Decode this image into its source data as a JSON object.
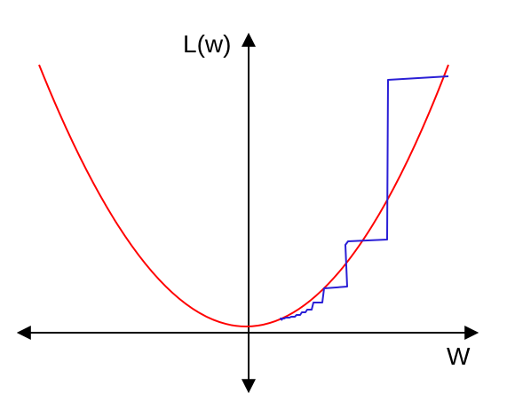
{
  "diagram": {
    "y_axis_label": "L(w)",
    "x_axis_label": "W",
    "colors": {
      "axes": "#000000",
      "loss_curve": "#ff0000",
      "descent_path": "#2a1fd6"
    },
    "shapes": {
      "loss_curve": "parabola",
      "descent_path": "step-path"
    }
  }
}
